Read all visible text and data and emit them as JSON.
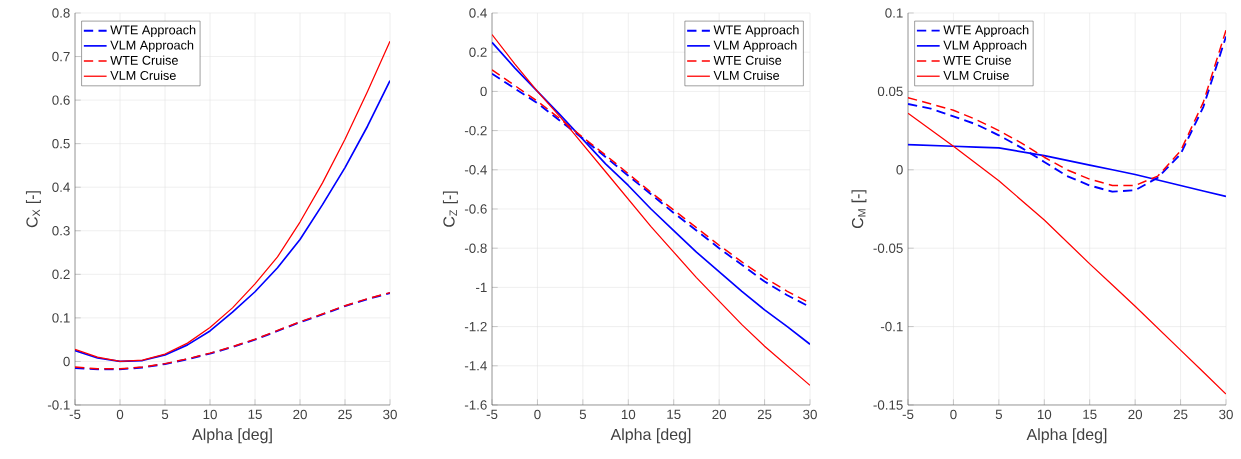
{
  "chart_data": [
    {
      "type": "line",
      "xlabel": "Alpha [deg]",
      "ylabel": "C$_{X}$ [-]",
      "x": [
        -5,
        -2.5,
        0,
        2.5,
        5,
        7.5,
        10,
        12.5,
        15,
        17.5,
        20,
        22.5,
        25,
        27.5,
        30
      ],
      "xlim": [
        -5,
        30
      ],
      "xticks": [
        -5,
        0,
        5,
        10,
        15,
        20,
        25,
        30
      ],
      "ylim": [
        -0.1,
        0.8
      ],
      "yticks": [
        -0.1,
        0,
        0.1,
        0.2,
        0.3,
        0.4,
        0.5,
        0.6,
        0.7,
        0.8
      ],
      "grid": true,
      "legend": "top left",
      "series": [
        {
          "name": "WTE Approach",
          "color": "#0000ff",
          "line_style": "dashed",
          "values": [
            -0.015,
            -0.018,
            -0.018,
            -0.014,
            -0.006,
            0.005,
            0.018,
            0.033,
            0.05,
            0.07,
            0.09,
            0.108,
            0.127,
            0.143,
            0.157
          ]
        },
        {
          "name": "VLM Approach",
          "color": "#0000ff",
          "line_style": "solid",
          "values": [
            0.025,
            0.008,
            0.0,
            0.002,
            0.015,
            0.038,
            0.07,
            0.113,
            0.16,
            0.215,
            0.28,
            0.36,
            0.445,
            0.54,
            0.645
          ]
        },
        {
          "name": "WTE Cruise",
          "color": "#ff0000",
          "line_style": "dashed",
          "values": [
            -0.013,
            -0.017,
            -0.017,
            -0.013,
            -0.005,
            0.006,
            0.019,
            0.034,
            0.051,
            0.071,
            0.091,
            0.109,
            0.128,
            0.144,
            0.158
          ]
        },
        {
          "name": "VLM Cruise",
          "color": "#ff0000",
          "line_style": "solid",
          "values": [
            0.028,
            0.01,
            0.0,
            0.003,
            0.017,
            0.042,
            0.078,
            0.123,
            0.178,
            0.24,
            0.32,
            0.41,
            0.51,
            0.62,
            0.735
          ]
        }
      ]
    },
    {
      "type": "line",
      "xlabel": "Alpha [deg]",
      "ylabel": "C$_{Z}$ [-]",
      "x": [
        -5,
        -2.5,
        0,
        2.5,
        5,
        7.5,
        10,
        12.5,
        15,
        17.5,
        20,
        22.5,
        25,
        27.5,
        30
      ],
      "xlim": [
        -5,
        30
      ],
      "xticks": [
        -5,
        0,
        5,
        10,
        15,
        20,
        25,
        30
      ],
      "ylim": [
        -1.6,
        0.4
      ],
      "yticks": [
        -1.6,
        -1.4,
        -1.2,
        -1,
        -0.8,
        -0.6,
        -0.4,
        -0.2,
        0,
        0.2,
        0.4
      ],
      "grid": true,
      "legend": "top right",
      "series": [
        {
          "name": "WTE Approach",
          "color": "#0000ff",
          "line_style": "dashed",
          "values": [
            0.09,
            0.015,
            -0.06,
            -0.15,
            -0.24,
            -0.335,
            -0.43,
            -0.525,
            -0.62,
            -0.71,
            -0.8,
            -0.885,
            -0.97,
            -1.04,
            -1.1
          ]
        },
        {
          "name": "VLM Approach",
          "color": "#0000ff",
          "line_style": "solid",
          "values": [
            0.25,
            0.12,
            0.0,
            -0.12,
            -0.245,
            -0.37,
            -0.48,
            -0.6,
            -0.71,
            -0.82,
            -0.92,
            -1.02,
            -1.115,
            -1.2,
            -1.29
          ]
        },
        {
          "name": "WTE Cruise",
          "color": "#ff0000",
          "line_style": "dashed",
          "values": [
            0.11,
            0.03,
            -0.05,
            -0.14,
            -0.235,
            -0.325,
            -0.42,
            -0.515,
            -0.605,
            -0.695,
            -0.785,
            -0.87,
            -0.95,
            -1.02,
            -1.08
          ]
        },
        {
          "name": "VLM Cruise",
          "color": "#ff0000",
          "line_style": "solid",
          "values": [
            0.29,
            0.14,
            0.0,
            -0.13,
            -0.27,
            -0.41,
            -0.55,
            -0.69,
            -0.82,
            -0.95,
            -1.07,
            -1.19,
            -1.3,
            -1.4,
            -1.5
          ]
        }
      ]
    },
    {
      "type": "line",
      "xlabel": "Alpha [deg]",
      "ylabel": "C$_{M}$ [-]",
      "x": [
        -5,
        -2.5,
        0,
        2.5,
        5,
        7.5,
        10,
        12.5,
        15,
        17.5,
        20,
        22.5,
        25,
        27.5,
        30
      ],
      "xlim": [
        -5,
        30
      ],
      "xticks": [
        -5,
        0,
        5,
        10,
        15,
        20,
        25,
        30
      ],
      "ylim": [
        -0.15,
        0.1
      ],
      "yticks": [
        -0.15,
        -0.1,
        -0.05,
        0,
        0.05,
        0.1
      ],
      "grid": true,
      "legend": "top left",
      "series": [
        {
          "name": "WTE Approach",
          "color": "#0000ff",
          "line_style": "dashed",
          "values": [
            0.042,
            0.039,
            0.034,
            0.029,
            0.022,
            0.014,
            0.005,
            -0.004,
            -0.01,
            -0.014,
            -0.013,
            -0.005,
            0.01,
            0.04,
            0.085
          ]
        },
        {
          "name": "VLM Approach",
          "color": "#0000ff",
          "line_style": "solid",
          "values": [
            0.016,
            0.0155,
            0.015,
            0.0145,
            0.014,
            0.0115,
            0.009,
            0.006,
            0.003,
            0.0,
            -0.003,
            -0.0065,
            -0.01,
            -0.0135,
            -0.017
          ]
        },
        {
          "name": "WTE Cruise",
          "color": "#ff0000",
          "line_style": "dashed",
          "values": [
            0.046,
            0.042,
            0.038,
            0.032,
            0.025,
            0.017,
            0.008,
            0.0,
            -0.006,
            -0.01,
            -0.01,
            -0.004,
            0.012,
            0.043,
            0.089
          ]
        },
        {
          "name": "VLM Cruise",
          "color": "#ff0000",
          "line_style": "solid",
          "values": [
            0.036,
            0.0255,
            0.015,
            0.004,
            -0.007,
            -0.0195,
            -0.032,
            -0.046,
            -0.06,
            -0.0735,
            -0.087,
            -0.101,
            -0.115,
            -0.129,
            -0.143
          ]
        }
      ]
    }
  ]
}
